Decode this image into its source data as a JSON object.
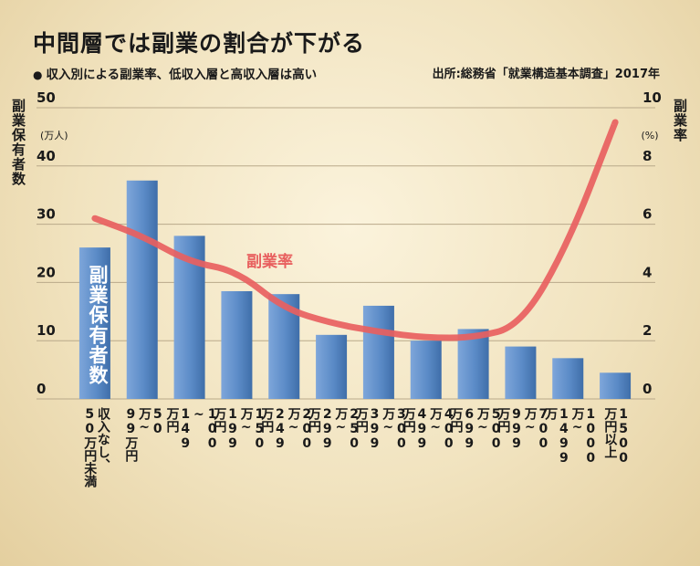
{
  "title": "中間層では副業の割合が下がる",
  "subtitle": "収入別による副業率、低収入層と高収入層は高い",
  "source": "出所:総務省「就業構造基本調査」2017年",
  "chart_data": {
    "type": "bar",
    "left_axis": {
      "title": "副業保有者数",
      "unit": "(万人)",
      "ticks": [
        "50",
        "40",
        "30",
        "20",
        "10",
        "0"
      ],
      "range": [
        0,
        50
      ]
    },
    "right_axis": {
      "title": "副業率",
      "unit": "(%)",
      "ticks": [
        "10",
        "8",
        "6",
        "4",
        "2",
        "0"
      ],
      "range": [
        0,
        10
      ]
    },
    "categories": [
      "収入なし、\n50万円未満",
      "50\n万~\n99万円",
      "100\n~\n149\n万円",
      "150\n万~\n199\n万円",
      "200\n万~\n249\n万円",
      "250\n万~\n299\n万円",
      "300\n万~\n399\n万円",
      "400\n万~\n499\n万円",
      "500\n万~\n699\n万円",
      "700\n万~\n999\n万円",
      "1000\n万~\n1499\n万",
      "1500\n万円以上"
    ],
    "series": [
      {
        "name": "副業保有者数",
        "kind": "bar",
        "axis": "left",
        "values": [
          26,
          37.5,
          28,
          18.5,
          18,
          11,
          16,
          10,
          12,
          9,
          7,
          4.5
        ],
        "color": "#5b8bc7"
      },
      {
        "name": "副業率",
        "kind": "line",
        "axis": "right",
        "values": [
          6.2,
          5.6,
          4.7,
          4.4,
          3.1,
          2.6,
          2.3,
          2.1,
          2.1,
          2.5,
          5.3,
          9.5
        ],
        "color": "#e8605f"
      }
    ],
    "grid": true
  }
}
